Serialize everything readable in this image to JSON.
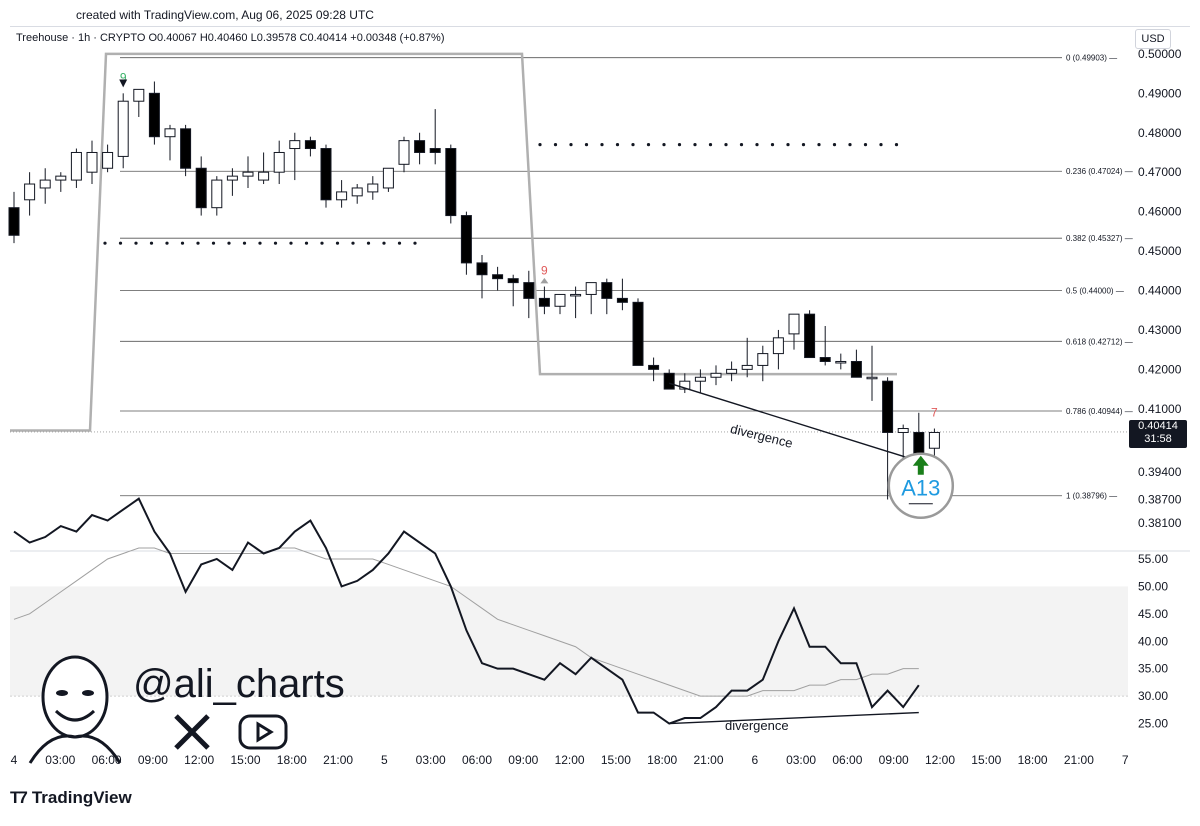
{
  "header": {
    "created": "created with TradingView.com, Aug 06, 2025 09:28 UTC"
  },
  "legend": "Treehouse · 1h · CRYPTO  O0.40067  H0.40460  L0.39578  C0.40414  +0.00348 (+0.87%)",
  "currency": "USD",
  "last_price": {
    "value": "0.40414",
    "countdown": "31:58"
  },
  "brand": {
    "logo_text": "TradingView"
  },
  "watermark": {
    "handle": "@ali_charts"
  },
  "colors": {
    "up": "#ffffff",
    "down": "#000000",
    "grid": "#000000",
    "accent": "#1e9ae0",
    "arrow_green": "#1a7f1a",
    "td_red": "#e05a5a",
    "td_green": "#3bb36a"
  },
  "chart_data": [
    {
      "type": "candlestick",
      "price_axis": [
        "0.50000",
        "0.49000",
        "0.48000",
        "0.47000",
        "0.46000",
        "0.45000",
        "0.44000",
        "0.43000",
        "0.42000",
        "0.41000",
        "0.39400",
        "0.38700",
        "0.38100"
      ],
      "ylim": [
        0.378,
        0.502
      ],
      "time_axis": [
        "4",
        "03:00",
        "06:00",
        "09:00",
        "12:00",
        "15:00",
        "18:00",
        "21:00",
        "5",
        "03:00",
        "06:00",
        "09:00",
        "12:00",
        "15:00",
        "18:00",
        "21:00",
        "6",
        "03:00",
        "06:00",
        "09:00",
        "12:00",
        "15:00",
        "18:00",
        "21:00",
        "7"
      ],
      "candles": [
        [
          0.461,
          0.465,
          0.452,
          0.454
        ],
        [
          0.463,
          0.47,
          0.459,
          0.467
        ],
        [
          0.466,
          0.471,
          0.462,
          0.468
        ],
        [
          0.468,
          0.47,
          0.465,
          0.469
        ],
        [
          0.468,
          0.476,
          0.466,
          0.475
        ],
        [
          0.47,
          0.478,
          0.467,
          0.475
        ],
        [
          0.471,
          0.477,
          0.47,
          0.475
        ],
        [
          0.474,
          0.49,
          0.471,
          0.488
        ],
        [
          0.488,
          0.491,
          0.484,
          0.491
        ],
        [
          0.49,
          0.493,
          0.477,
          0.479
        ],
        [
          0.479,
          0.482,
          0.473,
          0.481
        ],
        [
          0.481,
          0.482,
          0.469,
          0.471
        ],
        [
          0.471,
          0.474,
          0.459,
          0.461
        ],
        [
          0.461,
          0.469,
          0.459,
          0.468
        ],
        [
          0.468,
          0.471,
          0.464,
          0.469
        ],
        [
          0.469,
          0.474,
          0.466,
          0.47
        ],
        [
          0.468,
          0.475,
          0.467,
          0.47
        ],
        [
          0.47,
          0.478,
          0.467,
          0.475
        ],
        [
          0.476,
          0.48,
          0.468,
          0.478
        ],
        [
          0.478,
          0.479,
          0.474,
          0.476
        ],
        [
          0.476,
          0.477,
          0.461,
          0.463
        ],
        [
          0.463,
          0.468,
          0.461,
          0.465
        ],
        [
          0.464,
          0.467,
          0.462,
          0.466
        ],
        [
          0.465,
          0.469,
          0.463,
          0.467
        ],
        [
          0.466,
          0.471,
          0.465,
          0.471
        ],
        [
          0.472,
          0.479,
          0.47,
          0.478
        ],
        [
          0.478,
          0.48,
          0.472,
          0.475
        ],
        [
          0.476,
          0.486,
          0.472,
          0.475
        ],
        [
          0.476,
          0.477,
          0.457,
          0.459
        ],
        [
          0.459,
          0.46,
          0.444,
          0.447
        ],
        [
          0.447,
          0.449,
          0.438,
          0.444
        ],
        [
          0.444,
          0.446,
          0.44,
          0.443
        ],
        [
          0.443,
          0.444,
          0.436,
          0.442
        ],
        [
          0.442,
          0.445,
          0.433,
          0.438
        ],
        [
          0.438,
          0.441,
          0.434,
          0.436
        ],
        [
          0.436,
          0.439,
          0.434,
          0.439
        ],
        [
          0.439,
          0.441,
          0.433,
          0.439
        ],
        [
          0.439,
          0.441,
          0.434,
          0.442
        ],
        [
          0.442,
          0.443,
          0.434,
          0.438
        ],
        [
          0.438,
          0.443,
          0.435,
          0.437
        ],
        [
          0.437,
          0.438,
          0.421,
          0.421
        ],
        [
          0.421,
          0.423,
          0.417,
          0.42
        ],
        [
          0.419,
          0.42,
          0.416,
          0.415
        ],
        [
          0.415,
          0.419,
          0.414,
          0.417
        ],
        [
          0.417,
          0.42,
          0.414,
          0.418
        ],
        [
          0.418,
          0.421,
          0.416,
          0.419
        ],
        [
          0.419,
          0.422,
          0.417,
          0.42
        ],
        [
          0.42,
          0.428,
          0.418,
          0.421
        ],
        [
          0.421,
          0.426,
          0.417,
          0.424
        ],
        [
          0.424,
          0.43,
          0.42,
          0.428
        ],
        [
          0.429,
          0.434,
          0.425,
          0.434
        ],
        [
          0.434,
          0.435,
          0.423,
          0.423
        ],
        [
          0.423,
          0.431,
          0.421,
          0.422
        ],
        [
          0.422,
          0.424,
          0.42,
          0.422
        ],
        [
          0.422,
          0.425,
          0.418,
          0.418
        ],
        [
          0.418,
          0.426,
          0.412,
          0.418
        ],
        [
          0.417,
          0.418,
          0.387,
          0.404
        ],
        [
          0.404,
          0.406,
          0.393,
          0.405
        ],
        [
          0.404,
          0.409,
          0.398,
          0.398
        ],
        [
          0.4,
          0.405,
          0.396,
          0.404
        ]
      ],
      "fib_levels": [
        "0 (0.49903)",
        "0.236 (0.47024)",
        "0.382 (0.45327)",
        "0.5 (0.44000)",
        "0.618 (0.42712)",
        "0.786 (0.40944)",
        "1 (0.38796)"
      ],
      "fib_values": [
        0.49903,
        0.47024,
        0.45327,
        0.44,
        0.42712,
        0.40944,
        0.38796
      ],
      "td_labels": [
        {
          "text": "9",
          "candle": 7,
          "color": "green"
        },
        {
          "text": "9",
          "candle": 34,
          "color": "red"
        },
        {
          "text": "7",
          "candle": 59,
          "color": "red"
        }
      ],
      "annotations": {
        "divergence": "divergence",
        "signal": "A13"
      }
    },
    {
      "type": "line",
      "name": "RSI",
      "y_axis": [
        "55.00",
        "50.00",
        "45.00",
        "40.00",
        "35.00",
        "30.00",
        "25.00"
      ],
      "ylim": [
        22,
        57
      ],
      "rsi": [
        60,
        58,
        59,
        61,
        60,
        63,
        62,
        64,
        66,
        60,
        56,
        49,
        54,
        55,
        53,
        58,
        56,
        57,
        60,
        62,
        57,
        50,
        51,
        53,
        56,
        60,
        58,
        56,
        50,
        42,
        36,
        35,
        35,
        34,
        33,
        36,
        34,
        37,
        35,
        33,
        27,
        27,
        25,
        26,
        26,
        28,
        31,
        31,
        33,
        40,
        46,
        39,
        39,
        36,
        36,
        28,
        31,
        28,
        32
      ],
      "rsi_ma": [
        44,
        45,
        47,
        49,
        51,
        53,
        55,
        56,
        57,
        57,
        56,
        56,
        56,
        56,
        56,
        56,
        56,
        57,
        57,
        56,
        55,
        55,
        55,
        55,
        54,
        53,
        52,
        51,
        50,
        48,
        46,
        44,
        43,
        42,
        41,
        40,
        39,
        37,
        36,
        35,
        34,
        33,
        32,
        31,
        30,
        30,
        30,
        30,
        31,
        31,
        31,
        32,
        32,
        33,
        33,
        34,
        34,
        35,
        35
      ],
      "annotations": {
        "divergence": "divergence"
      }
    }
  ]
}
